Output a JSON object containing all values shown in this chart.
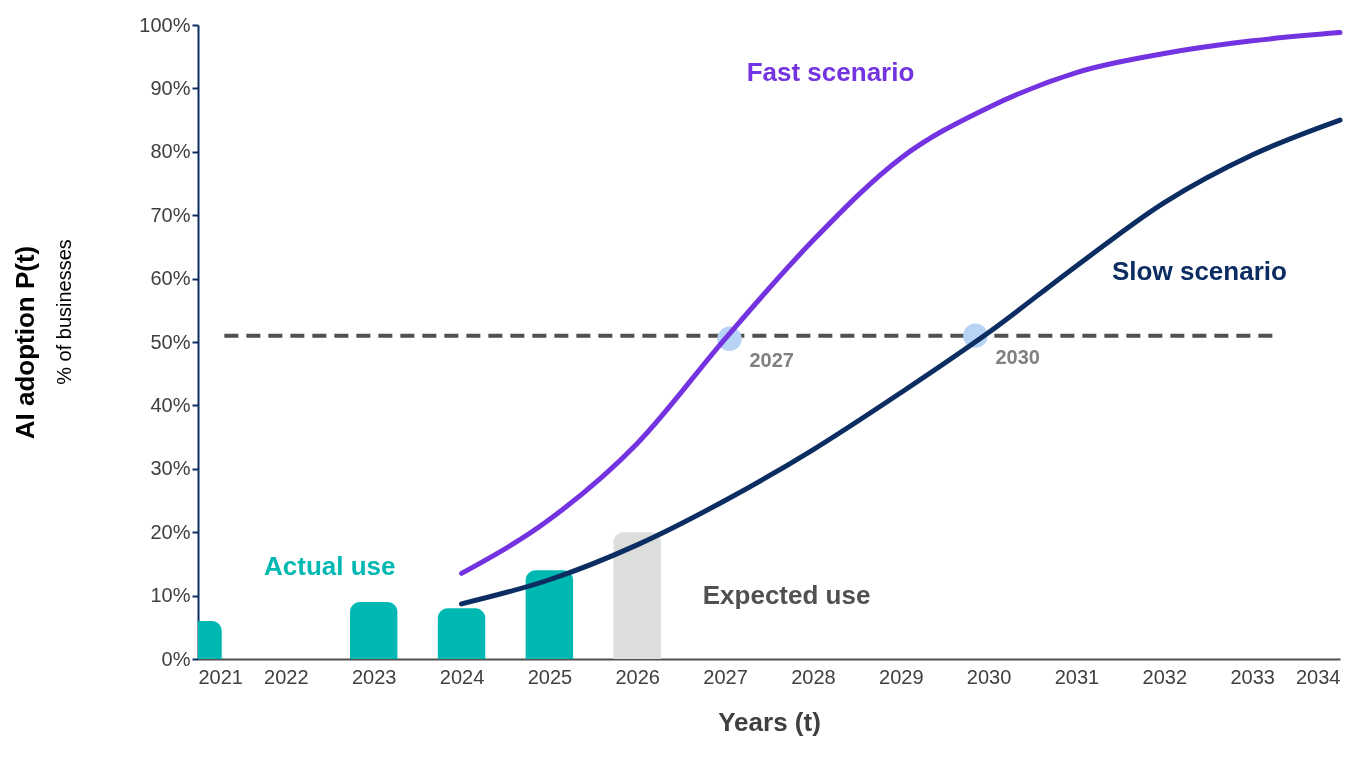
{
  "chart_data": {
    "type": "line",
    "xlabel": "Years (t)",
    "ylabel": "AI adoption P(t)",
    "xlim": [
      2021,
      2034
    ],
    "ylim": [
      0,
      100
    ],
    "xticks": [
      2021,
      2022,
      2023,
      2024,
      2025,
      2026,
      2027,
      2028,
      2029,
      2030,
      2031,
      2032,
      2033,
      2034
    ],
    "yticks": [
      {
        "value": 0,
        "label": "0%"
      },
      {
        "value": 10,
        "label": "10%"
      },
      {
        "value": 20,
        "label": "20%"
      },
      {
        "value": 30,
        "label": "30%"
      },
      {
        "value": 40,
        "label": "40%"
      },
      {
        "value": 50,
        "label": "50%"
      },
      {
        "value": 60,
        "label": "60%"
      },
      {
        "value": 70,
        "label": "70%"
      },
      {
        "value": 80,
        "label": "80%"
      },
      {
        "value": 90,
        "label": "90%"
      },
      {
        "value": 100,
        "label": "100%"
      }
    ],
    "series": [
      {
        "name": "Actual use",
        "type": "bar",
        "color": "#00b8b2",
        "x": [
          2021,
          2022,
          2023,
          2024,
          2025
        ],
        "values": [
          6,
          null,
          9,
          8,
          14
        ]
      },
      {
        "name": "Expected use",
        "type": "bar",
        "color": "#dcdedb",
        "x": [
          2026
        ],
        "values": [
          20
        ]
      },
      {
        "name": "Fast scenario",
        "color": "#7433e0",
        "x": [
          2024,
          2025,
          2026,
          2027,
          2028,
          2029,
          2030,
          2031,
          2032,
          2033,
          2034
        ],
        "values": [
          13.5,
          22,
          34,
          50.5,
          66,
          79,
          87,
          92.5,
          95.5,
          97.5,
          98.8
        ]
      },
      {
        "name": "Slow scenario",
        "color": "#0c2d62",
        "x": [
          2024,
          2025,
          2026,
          2027,
          2028,
          2029,
          2030,
          2031,
          2032,
          2033,
          2034
        ],
        "values": [
          8.7,
          12.5,
          18,
          25,
          33,
          42,
          51.5,
          62,
          72,
          79.5,
          85
        ]
      }
    ],
    "ref_lines": [
      {
        "axis": "y",
        "value": 51,
        "color": "#505050",
        "line_style": "dashed"
      }
    ],
    "annotations": [
      "% of businesses",
      {
        "text": "2027",
        "x": 2027.05,
        "y": 50.5
      },
      {
        "text": "2030",
        "x": 2029.85,
        "y": 51
      }
    ],
    "grid": false,
    "marker": "none",
    "line_style": "solid"
  }
}
